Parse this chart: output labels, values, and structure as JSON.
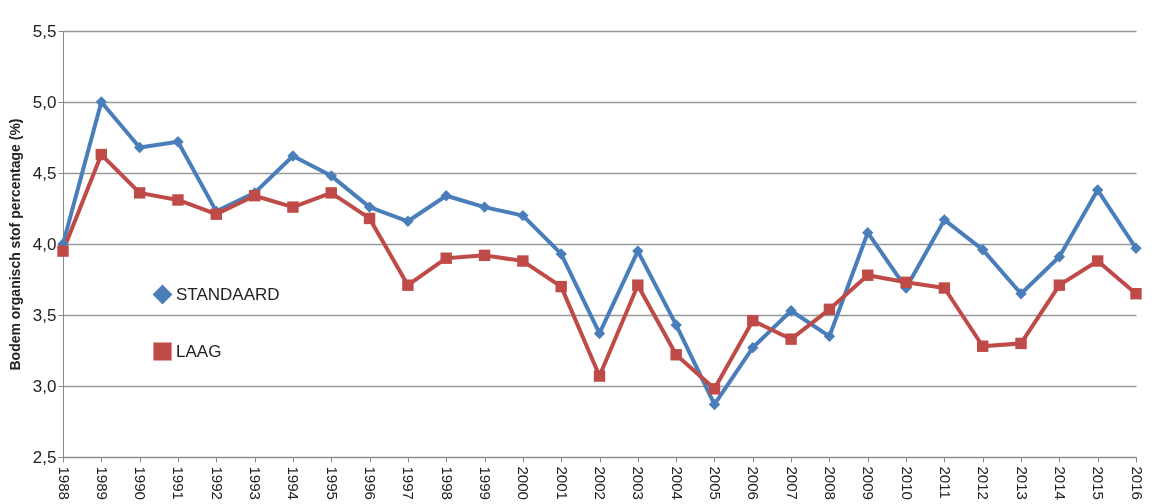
{
  "chart_data": {
    "type": "line",
    "ylabel": "Bodem organisch stof percentage (%)",
    "categories": [
      "1988",
      "1989",
      "1990",
      "1991",
      "1992",
      "1993",
      "1994",
      "1995",
      "1996",
      "1997",
      "1998",
      "1999",
      "2000",
      "2001",
      "2002",
      "2003",
      "2004",
      "2005",
      "2006",
      "2007",
      "2008",
      "2009",
      "2010",
      "2011",
      "2012",
      "2013",
      "2014",
      "2015",
      "2016"
    ],
    "series": [
      {
        "name": "STANDAARD",
        "color": "#4a7ebb",
        "marker": "diamond",
        "values": [
          4.0,
          5.0,
          4.68,
          4.72,
          4.23,
          4.36,
          4.62,
          4.48,
          4.26,
          4.16,
          4.34,
          4.26,
          4.2,
          3.93,
          3.37,
          3.95,
          3.43,
          2.87,
          3.27,
          3.53,
          3.35,
          4.08,
          3.69,
          4.17,
          3.96,
          3.65,
          3.91,
          4.38,
          3.97
        ]
      },
      {
        "name": "LAAG",
        "color": "#be4b48",
        "marker": "square",
        "values": [
          3.95,
          4.63,
          4.36,
          4.31,
          4.21,
          4.34,
          4.26,
          4.36,
          4.18,
          3.71,
          3.9,
          3.92,
          3.88,
          3.7,
          3.07,
          3.71,
          3.22,
          2.98,
          3.46,
          3.33,
          3.54,
          3.78,
          3.73,
          3.69,
          3.28,
          3.3,
          3.71,
          3.88,
          3.65
        ]
      }
    ],
    "ylim": [
      2.5,
      5.5
    ],
    "yticks": [
      {
        "value": 2.5,
        "label": "2,5"
      },
      {
        "value": 3.0,
        "label": "3,0"
      },
      {
        "value": 3.5,
        "label": "3,5"
      },
      {
        "value": 4.0,
        "label": "4,0"
      },
      {
        "value": 4.5,
        "label": "4,5"
      },
      {
        "value": 5.0,
        "label": "5,0"
      },
      {
        "value": 5.5,
        "label": "5,5"
      }
    ],
    "grid": "y",
    "legend": "bottom left",
    "line_style": "solid"
  }
}
